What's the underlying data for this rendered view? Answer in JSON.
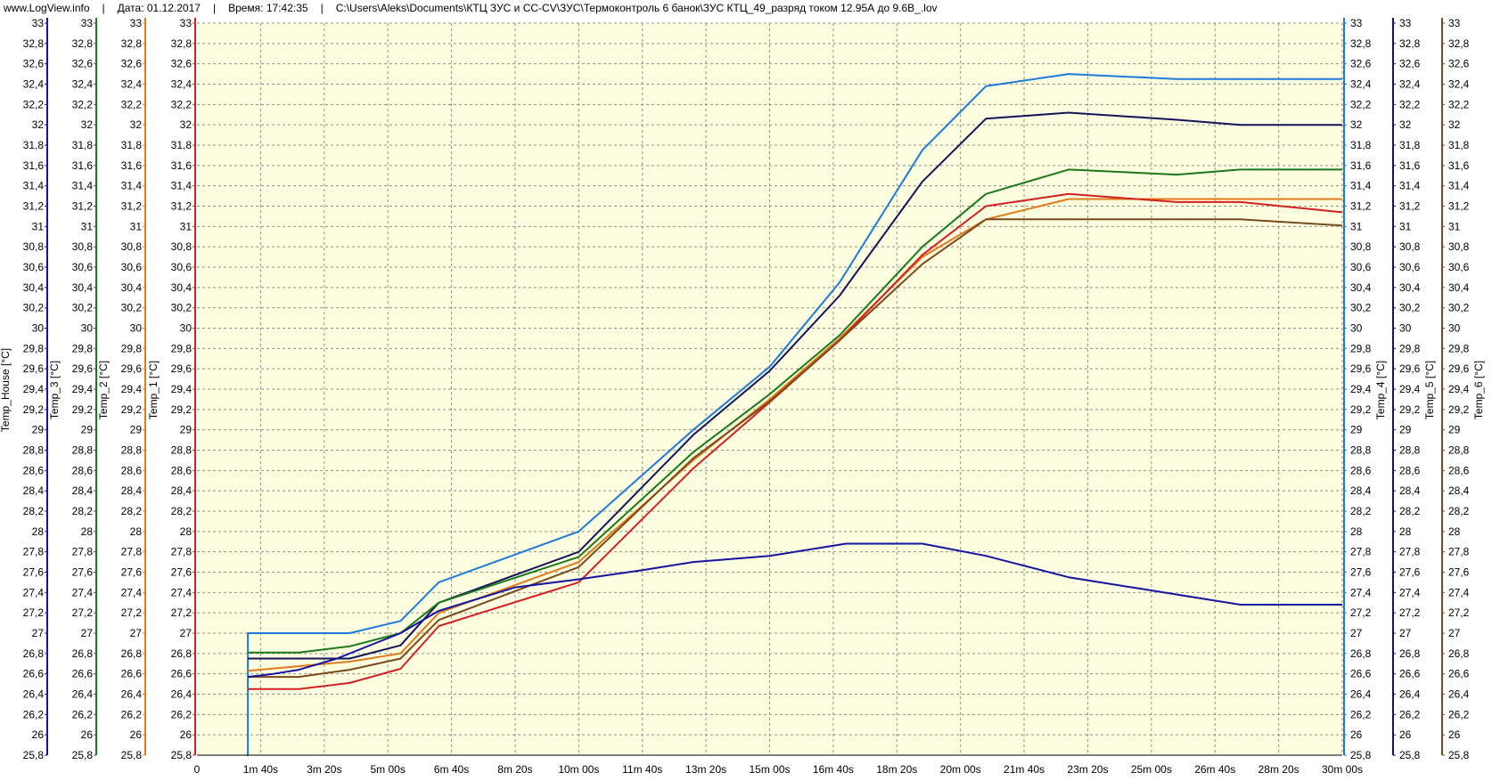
{
  "header": {
    "site": "www.LogView.info",
    "date_label": "Дата: 01.12.2017",
    "time_label": "Время: 17:42:35",
    "path": "C:\\Users\\Aleks\\Documents\\КТЦ ЗУС и CC-CV\\ЗУС\\Термоконтроль 6 банок\\ЗУС КТЦ_49_разряд током 12.95А до 9.6В_.lov"
  },
  "chart_data": {
    "type": "line",
    "x_unit": "s",
    "xlim": [
      0,
      1800
    ],
    "x_ticks": [
      0,
      100,
      200,
      300,
      400,
      500,
      600,
      700,
      800,
      900,
      1000,
      1100,
      1200,
      1300,
      1400,
      1500,
      1600,
      1700,
      1800
    ],
    "x_tick_labels": [
      "0",
      "1m 40s",
      "3m 20s",
      "5m 00s",
      "6m 40s",
      "8m 20s",
      "10m 00s",
      "11m 40s",
      "13m 20s",
      "15m 00s",
      "16m 40s",
      "18m 20s",
      "20m 00s",
      "21m 40s",
      "23m 20s",
      "25m 00s",
      "26m 40s",
      "28m 20s",
      "30m 00s"
    ],
    "ylim": [
      25.8,
      33
    ],
    "y_ticks": [
      25.8,
      26,
      26.2,
      26.4,
      26.6,
      26.8,
      27,
      27.2,
      27.4,
      27.6,
      27.8,
      28,
      28.2,
      28.4,
      28.6,
      28.8,
      29,
      29.2,
      29.4,
      29.6,
      29.8,
      30,
      30.2,
      30.4,
      30.6,
      30.8,
      31,
      31.2,
      31.4,
      31.6,
      31.8,
      32,
      32.2,
      32.4,
      32.6,
      32.8,
      33
    ],
    "y_tick_labels": [
      "25,8",
      "26",
      "26,2",
      "26,4",
      "26,6",
      "26,8",
      "27",
      "27,2",
      "27,4",
      "27,6",
      "27,8",
      "28",
      "28,2",
      "28,4",
      "28,6",
      "28,8",
      "29",
      "29,2",
      "29,4",
      "29,6",
      "29,8",
      "30",
      "30,2",
      "30,4",
      "30,6",
      "30,8",
      "31",
      "31,2",
      "31,4",
      "31,6",
      "31,8",
      "32",
      "32,2",
      "32,4",
      "32,6",
      "32,8",
      "33"
    ],
    "grid": true,
    "background": "#fdfde0",
    "axes": [
      {
        "name": "Temp_House [°C]",
        "side": "left",
        "color": "#1414a0"
      },
      {
        "name": "Temp_3 [°C]",
        "side": "left",
        "color": "#1a7a1a"
      },
      {
        "name": "Temp_2 [°C]",
        "side": "left",
        "color": "#e07b1a"
      },
      {
        "name": "Temp_1 [°C]",
        "side": "left",
        "color": "#d42020"
      },
      {
        "name": "Temp_4 [°C]",
        "side": "right",
        "color": "#1e7ad8"
      },
      {
        "name": "Temp_5 [°C]",
        "side": "right",
        "color": "#14145a"
      },
      {
        "name": "Temp_6 [°C]",
        "side": "right",
        "color": "#7a4a1a"
      }
    ],
    "series": [
      {
        "name": "Temp_4 [°C]",
        "color": "#1e7ad8",
        "x": [
          78,
          80,
          80,
          240,
          320,
          380,
          600,
          780,
          900,
          1010,
          1140,
          1240,
          1370,
          1540,
          1640,
          1800
        ],
        "y": [
          25.8,
          25.8,
          27.0,
          27.0,
          27.12,
          27.5,
          28.0,
          29.0,
          29.62,
          30.45,
          31.75,
          32.38,
          32.5,
          32.45,
          32.45,
          32.45
        ]
      },
      {
        "name": "Temp_5 [°C]",
        "color": "#14145a",
        "x": [
          80,
          240,
          320,
          380,
          600,
          780,
          900,
          1010,
          1140,
          1240,
          1370,
          1540,
          1640,
          1800
        ],
        "y": [
          26.75,
          26.75,
          26.88,
          27.3,
          27.8,
          28.95,
          29.58,
          30.32,
          31.44,
          32.06,
          32.12,
          32.05,
          32.0,
          32.0
        ]
      },
      {
        "name": "Temp_3 [°C]",
        "color": "#1a7a1a",
        "x": [
          80,
          160,
          240,
          320,
          380,
          600,
          780,
          900,
          1010,
          1140,
          1240,
          1370,
          1540,
          1640,
          1800
        ],
        "y": [
          26.81,
          26.81,
          26.87,
          27.0,
          27.3,
          27.75,
          28.78,
          29.35,
          29.93,
          30.8,
          31.32,
          31.56,
          31.51,
          31.56,
          31.56
        ]
      },
      {
        "name": "Temp_2 [°C]",
        "color": "#e07b1a",
        "x": [
          80,
          240,
          320,
          380,
          600,
          780,
          900,
          1010,
          1140,
          1240,
          1370,
          1540,
          1640,
          1800
        ],
        "y": [
          26.63,
          26.72,
          26.8,
          27.2,
          27.7,
          28.7,
          29.3,
          29.9,
          30.7,
          31.07,
          31.27,
          31.27,
          31.27,
          31.27
        ]
      },
      {
        "name": "Temp_1 [°C]",
        "color": "#d42020",
        "x": [
          80,
          160,
          240,
          320,
          380,
          600,
          780,
          900,
          1010,
          1140,
          1240,
          1370,
          1540,
          1640,
          1800
        ],
        "y": [
          26.45,
          26.45,
          26.51,
          26.65,
          27.07,
          27.5,
          28.62,
          29.27,
          29.88,
          30.72,
          31.2,
          31.32,
          31.24,
          31.24,
          31.14
        ]
      },
      {
        "name": "Temp_6 [°C]",
        "color": "#7a4a1a",
        "x": [
          80,
          160,
          240,
          320,
          380,
          600,
          780,
          900,
          1010,
          1140,
          1240,
          1370,
          1540,
          1640,
          1800
        ],
        "y": [
          26.57,
          26.57,
          26.64,
          26.75,
          27.13,
          27.65,
          28.72,
          29.28,
          29.88,
          30.63,
          31.07,
          31.07,
          31.07,
          31.07,
          31.01
        ]
      },
      {
        "name": "Temp_House [°C]",
        "color": "#1414a0",
        "x": [
          80,
          120,
          160,
          220,
          320,
          380,
          500,
          600,
          700,
          780,
          900,
          1020,
          1140,
          1240,
          1370,
          1540,
          1640,
          1800
        ],
        "y": [
          26.57,
          26.6,
          26.64,
          26.75,
          27.0,
          27.22,
          27.45,
          27.53,
          27.62,
          27.7,
          27.76,
          27.88,
          27.88,
          27.76,
          27.55,
          27.38,
          27.28,
          27.28
        ]
      }
    ]
  }
}
